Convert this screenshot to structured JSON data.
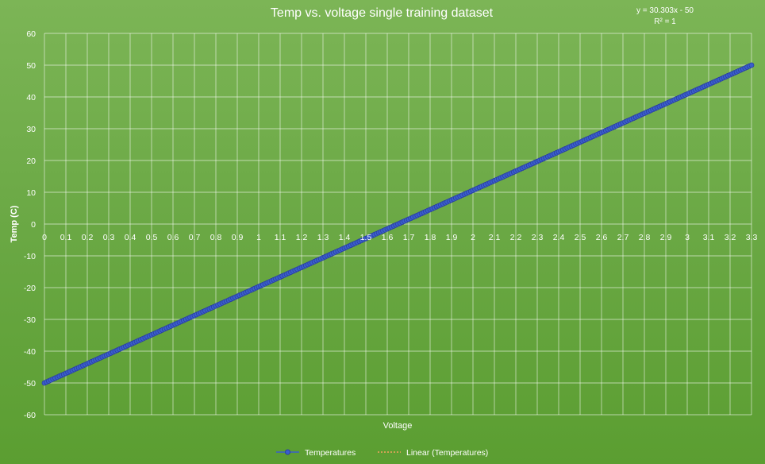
{
  "chart_data": {
    "type": "scatter",
    "title": "Temp vs. voltage single training dataset",
    "xlabel": "Voltage",
    "ylabel": "Temp (C)",
    "xlim": [
      0,
      3.3
    ],
    "ylim": [
      -60,
      60
    ],
    "x_tick_labels": [
      "0",
      "0.1",
      "0.2",
      "0.3",
      "0.4",
      "0.5",
      "0.6",
      "0.7",
      "0.8",
      "0.9",
      "1",
      "1.1",
      "1.2",
      "1.3",
      "1.4",
      "1.5",
      "1.6",
      "1.7",
      "1.8",
      "1.9",
      "2",
      "2.1",
      "2.2",
      "2.3",
      "2.4",
      "2.5",
      "2.6",
      "2.7",
      "2.8",
      "2.9",
      "3",
      "3.1",
      "3.2",
      "3.3"
    ],
    "y_tick_labels": [
      "60",
      "50",
      "40",
      "30",
      "20",
      "10",
      "0",
      "-10",
      "-20",
      "-30",
      "-40",
      "-50",
      "-60"
    ],
    "grid": true,
    "legend_position": "bottom",
    "trendline": {
      "type": "linear",
      "slope": 30.303,
      "intercept": -50,
      "equation": "y = 30.303x - 50",
      "r_squared": "R² = 1",
      "color": "#f4a460"
    },
    "series": [
      {
        "name": "Temperatures",
        "color": "#3a5fcd",
        "marker": "circle",
        "x_start": 0,
        "x_end": 3.3,
        "x_step": 0.01,
        "slope": 30.303,
        "intercept": -50
      }
    ],
    "legend": [
      {
        "label": "Temperatures",
        "style": "line-marker",
        "color": "#3a5fcd"
      },
      {
        "label": "Linear (Temperatures)",
        "style": "dotted",
        "color": "#f4a460"
      }
    ]
  }
}
